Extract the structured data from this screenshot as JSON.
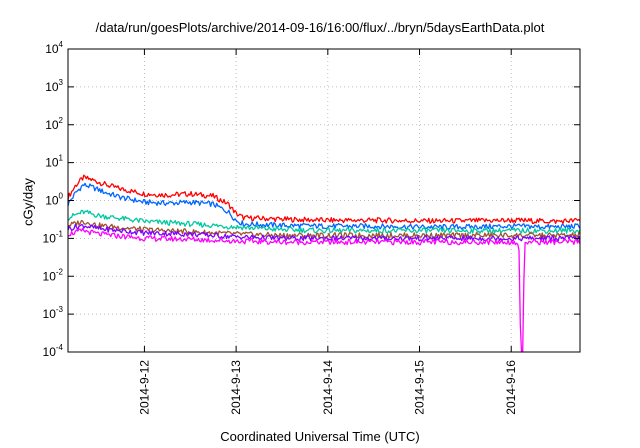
{
  "chart_data": {
    "type": "line",
    "title": "/data/run/goesPlots/archive/2014-09-16/16:00/flux/../bryn/5daysEarthData.plot",
    "xlabel": "Coordinated Universal Time (UTC)",
    "ylabel": "cGy/day",
    "yscale": "log",
    "ylim": [
      0.0001,
      10000
    ],
    "y_ticks": [
      {
        "base": "10",
        "exp": "-4"
      },
      {
        "base": "10",
        "exp": "-3"
      },
      {
        "base": "10",
        "exp": "-2"
      },
      {
        "base": "10",
        "exp": "-1"
      },
      {
        "base": "10",
        "exp": "0"
      },
      {
        "base": "10",
        "exp": "1"
      },
      {
        "base": "10",
        "exp": "2"
      },
      {
        "base": "10",
        "exp": "3"
      },
      {
        "base": "10",
        "exp": "4"
      }
    ],
    "xlim": [
      "2014-09-11 04:00",
      "2014-09-16 18:00"
    ],
    "x_ticks": [
      "2014-9-12",
      "2014-9-13",
      "2014-9-14",
      "2014-9-15",
      "2014-9-16"
    ],
    "grid": true,
    "series": [
      {
        "color": "#ff0000",
        "x": [
          "2014-09-11 04:00",
          "2014-09-11 06:00",
          "2014-09-11 08:00",
          "2014-09-11 10:00",
          "2014-09-11 14:00",
          "2014-09-11 18:00",
          "2014-09-12 00:00",
          "2014-09-12 06:00",
          "2014-09-12 12:00",
          "2014-09-12 18:00",
          "2014-09-12 22:00",
          "2014-09-13 00:00",
          "2014-09-13 02:00",
          "2014-09-13 12:00",
          "2014-09-14 00:00",
          "2014-09-14 12:00",
          "2014-09-15 00:00",
          "2014-09-15 12:00",
          "2014-09-16 00:00",
          "2014-09-16 12:00",
          "2014-09-16 18:00"
        ],
        "y": [
          1.2,
          2.5,
          4.0,
          3.6,
          2.6,
          2.0,
          1.5,
          1.4,
          1.5,
          1.3,
          0.8,
          0.45,
          0.35,
          0.32,
          0.3,
          0.3,
          0.29,
          0.29,
          0.3,
          0.28,
          0.3
        ]
      },
      {
        "color": "#0066ff",
        "x": [
          "2014-09-11 04:00",
          "2014-09-11 06:00",
          "2014-09-11 08:00",
          "2014-09-11 10:00",
          "2014-09-11 14:00",
          "2014-09-11 18:00",
          "2014-09-12 00:00",
          "2014-09-12 06:00",
          "2014-09-12 12:00",
          "2014-09-12 18:00",
          "2014-09-12 22:00",
          "2014-09-13 00:00",
          "2014-09-13 02:00",
          "2014-09-13 12:00",
          "2014-09-14 00:00",
          "2014-09-14 12:00",
          "2014-09-15 00:00",
          "2014-09-15 12:00",
          "2014-09-16 00:00",
          "2014-09-16 12:00",
          "2014-09-16 18:00"
        ],
        "y": [
          0.8,
          1.6,
          2.6,
          2.3,
          1.6,
          1.2,
          0.9,
          0.85,
          0.9,
          0.8,
          0.5,
          0.3,
          0.24,
          0.22,
          0.21,
          0.21,
          0.2,
          0.2,
          0.21,
          0.2,
          0.21
        ]
      },
      {
        "color": "#00c8a0",
        "x": [
          "2014-09-11 04:00",
          "2014-09-11 08:00",
          "2014-09-11 12:00",
          "2014-09-12 00:00",
          "2014-09-12 12:00",
          "2014-09-13 00:00",
          "2014-09-13 12:00",
          "2014-09-14 00:00",
          "2014-09-15 00:00",
          "2014-09-16 00:00",
          "2014-09-16 18:00"
        ],
        "y": [
          0.35,
          0.5,
          0.4,
          0.28,
          0.24,
          0.2,
          0.17,
          0.16,
          0.16,
          0.16,
          0.16
        ]
      },
      {
        "color": "#a0522d",
        "x": [
          "2014-09-11 04:00",
          "2014-09-11 08:00",
          "2014-09-11 12:00",
          "2014-09-12 00:00",
          "2014-09-12 12:00",
          "2014-09-13 00:00",
          "2014-09-13 12:00",
          "2014-09-14 00:00",
          "2014-09-15 00:00",
          "2014-09-16 00:00",
          "2014-09-16 18:00"
        ],
        "y": [
          0.22,
          0.28,
          0.22,
          0.17,
          0.15,
          0.13,
          0.12,
          0.12,
          0.12,
          0.12,
          0.12
        ]
      },
      {
        "color": "#8000ff",
        "x": [
          "2014-09-11 04:00",
          "2014-09-11 08:00",
          "2014-09-11 12:00",
          "2014-09-12 00:00",
          "2014-09-12 12:00",
          "2014-09-13 00:00",
          "2014-09-13 12:00",
          "2014-09-14 00:00",
          "2014-09-15 00:00",
          "2014-09-16 00:00",
          "2014-09-16 18:00"
        ],
        "y": [
          0.18,
          0.22,
          0.18,
          0.14,
          0.13,
          0.11,
          0.1,
          0.1,
          0.1,
          0.1,
          0.1
        ]
      },
      {
        "color": "#ff00ff",
        "x": [
          "2014-09-11 04:00",
          "2014-09-11 08:00",
          "2014-09-11 12:00",
          "2014-09-12 00:00",
          "2014-09-12 12:00",
          "2014-09-13 00:00",
          "2014-09-13 12:00",
          "2014-09-14 00:00",
          "2014-09-15 00:00",
          "2014-09-16 00:00",
          "2014-09-16 02:00",
          "2014-09-16 02:30",
          "2014-09-16 03:00",
          "2014-09-16 03:30",
          "2014-09-16 12:00",
          "2014-09-16 18:00"
        ],
        "y": [
          0.13,
          0.16,
          0.13,
          0.1,
          0.095,
          0.085,
          0.08,
          0.08,
          0.08,
          0.08,
          0.08,
          0.0001,
          0.0001,
          0.08,
          0.08,
          0.08
        ]
      }
    ]
  }
}
